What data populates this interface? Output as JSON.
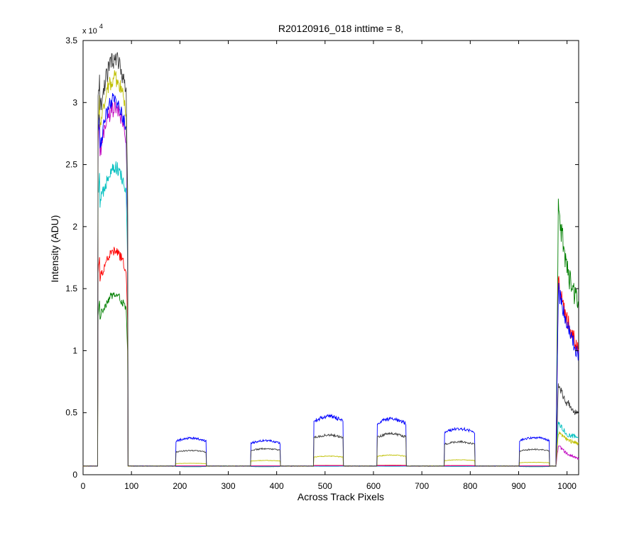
{
  "chart_data": {
    "type": "line",
    "title": "R20120916_018 inttime = 8,",
    "xlabel": "Across Track Pixels",
    "ylabel": "Intensity (ADU)",
    "y_exponent_label": "x 10",
    "y_exponent_power": "4",
    "xlim": [
      0,
      1024
    ],
    "ylim": [
      0,
      35000
    ],
    "xticks": [
      0,
      100,
      200,
      300,
      400,
      500,
      600,
      700,
      800,
      900,
      1000
    ],
    "yticks": [
      0,
      5000,
      10000,
      15000,
      20000,
      25000,
      30000,
      35000
    ],
    "ytick_labels": [
      "0",
      "0.5",
      "1",
      "1.5",
      "2",
      "2.5",
      "3",
      "3.5"
    ],
    "grid": false,
    "baseline": 700,
    "series": [
      {
        "color": "#007f00",
        "levels": {
          "peak1": 14500,
          "b200": 650,
          "b375": 650,
          "b505": 700,
          "b635": 700,
          "b790": 680,
          "b940": 650,
          "edge": [
            21000,
            16500,
            13500
          ]
        }
      },
      {
        "color": "#ff0000",
        "levels": {
          "peak1": 18000,
          "b200": 720,
          "b375": 720,
          "b505": 750,
          "b635": 760,
          "b790": 740,
          "b940": 720,
          "edge": [
            15200,
            12500,
            10000
          ]
        }
      },
      {
        "color": "#00bfbf",
        "levels": {
          "peak1": 24800,
          "b200": 650,
          "b375": 650,
          "b505": 680,
          "b635": 680,
          "b790": 670,
          "b940": 650,
          "edge": [
            4200,
            3200,
            3000
          ]
        }
      },
      {
        "color": "#bf00bf",
        "levels": {
          "peak1": 29500,
          "b200": 700,
          "b375": 700,
          "b505": 720,
          "b635": 720,
          "b790": 710,
          "b940": 700,
          "edge": [
            2300,
            1700,
            1300
          ]
        }
      },
      {
        "color": "#0000ff",
        "levels": {
          "peak1": 30200,
          "b200": 2950,
          "b375": 2750,
          "b505": 4700,
          "b635": 4500,
          "b790": 3700,
          "b940": 3000,
          "edge": [
            14800,
            12000,
            9500
          ]
        }
      },
      {
        "color": "#bfbf00",
        "levels": {
          "peak1": 32000,
          "b200": 920,
          "b375": 1150,
          "b505": 1500,
          "b635": 1580,
          "b790": 1200,
          "b940": 1000,
          "edge": [
            3400,
            2800,
            2500
          ]
        }
      },
      {
        "color": "#3f3f3f",
        "levels": {
          "peak1": 33500,
          "b200": 1950,
          "b375": 2100,
          "b505": 3200,
          "b635": 3300,
          "b790": 2650,
          "b940": 2050,
          "edge": [
            7000,
            5800,
            4800
          ]
        }
      }
    ]
  }
}
